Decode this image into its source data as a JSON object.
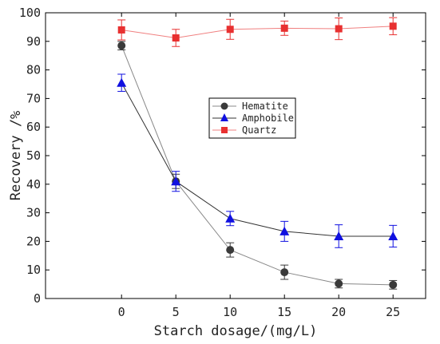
{
  "chart_data": {
    "type": "line",
    "xlabel": "Starch dosage/(mg/L)",
    "ylabel": "Recovery /%",
    "x": [
      0,
      5,
      10,
      15,
      20,
      25
    ],
    "xticks": [
      0,
      5,
      10,
      15,
      20,
      25
    ],
    "yticks": [
      0,
      10,
      20,
      30,
      40,
      50,
      60,
      70,
      80,
      90,
      100
    ],
    "xlim": [
      -7,
      28
    ],
    "ylim": [
      0,
      100
    ],
    "grid": false,
    "legend_position": "center-right",
    "series": [
      {
        "name": "Hematite",
        "marker": "circle",
        "color": "#3a3a3a",
        "line_color": "#888888",
        "values": [
          88.5,
          41,
          17,
          9.2,
          5.2,
          4.8
        ],
        "errors": [
          1.5,
          2.5,
          2.5,
          2.5,
          1.5,
          1.5
        ]
      },
      {
        "name": "Amphobile",
        "marker": "triangle",
        "color": "#1010e0",
        "line_color": "#333333",
        "values": [
          75.5,
          41,
          28,
          23.5,
          21.8,
          21.8
        ],
        "errors": [
          3,
          3.5,
          2.5,
          3.5,
          4,
          3.8
        ]
      },
      {
        "name": "Quartz",
        "marker": "square",
        "color": "#e83030",
        "line_color": "#f08080",
        "values": [
          94,
          91.2,
          94.2,
          94.6,
          94.4,
          95.3
        ],
        "errors": [
          3.5,
          3,
          3.5,
          2.5,
          3.8,
          3
        ]
      }
    ]
  }
}
